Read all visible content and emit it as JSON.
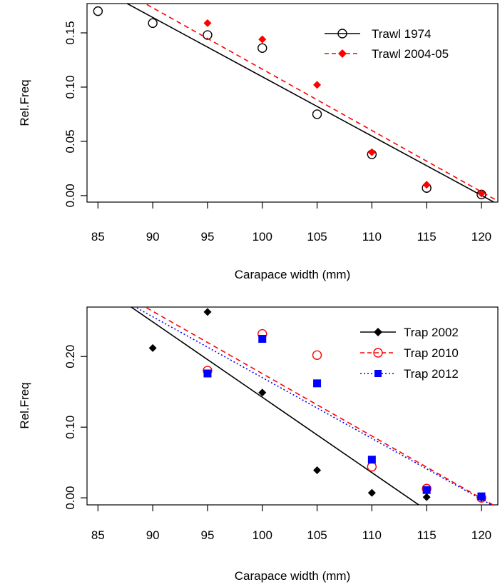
{
  "chart_data": [
    {
      "type": "scatter",
      "xlabel": "Carapace width (mm)",
      "ylabel": "Rel.Freq",
      "xlim": [
        84,
        121.5
      ],
      "ylim": [
        -0.006,
        0.177
      ],
      "xticks": [
        85,
        90,
        95,
        100,
        105,
        110,
        115,
        120
      ],
      "yticks": [
        0.0,
        0.05,
        0.1,
        0.15
      ],
      "ytick_labels": [
        "0.00",
        "0.05",
        "0.10",
        "0.15"
      ],
      "legend_position": "top-right",
      "series": [
        {
          "name": "Trawl 1974",
          "marker": "open-circle",
          "line": "solid",
          "color": "#000000",
          "x": [
            85,
            90,
            95,
            100,
            105,
            110,
            115,
            120
          ],
          "y": [
            0.17,
            0.159,
            0.148,
            0.136,
            0.075,
            0.038,
            0.007,
            0.001
          ],
          "fit": {
            "x": [
              84,
              121.5
            ],
            "y": [
              0.197,
              -0.008
            ]
          }
        },
        {
          "name": "Trawl 2004-05",
          "marker": "filled-diamond",
          "line": "dashed",
          "color": "#ff0000",
          "x": [
            95,
            100,
            105,
            110,
            115,
            120
          ],
          "y": [
            0.159,
            0.144,
            0.102,
            0.04,
            0.01,
            0.002
          ],
          "fit": {
            "x": [
              84,
              121.5
            ],
            "y": [
              0.207,
              -0.005
            ]
          }
        }
      ]
    },
    {
      "type": "scatter",
      "xlabel": "Carapace width (mm)",
      "ylabel": "Rel.Freq",
      "xlim": [
        84,
        121.5
      ],
      "ylim": [
        -0.01,
        0.27
      ],
      "xticks": [
        85,
        90,
        95,
        100,
        105,
        110,
        115,
        120
      ],
      "yticks": [
        0.0,
        0.1,
        0.2
      ],
      "ytick_labels": [
        "0.00",
        "0.10",
        "0.20"
      ],
      "legend_position": "top-right",
      "series": [
        {
          "name": "Trap 2002",
          "marker": "filled-diamond",
          "line": "solid",
          "color": "#000000",
          "x": [
            90,
            95,
            100,
            105,
            110,
            115,
            120
          ],
          "y": [
            0.212,
            0.263,
            0.149,
            0.039,
            0.007,
            0.001,
            0.0
          ],
          "fit": {
            "x": [
              84,
              121.5
            ],
            "y": [
              0.313,
              -0.087
            ]
          }
        },
        {
          "name": "Trap 2010",
          "marker": "open-circle",
          "line": "dashed",
          "color": "#ff0000",
          "x": [
            95,
            100,
            105,
            110,
            115,
            120
          ],
          "y": [
            0.18,
            0.232,
            0.202,
            0.044,
            0.013,
            0.0
          ],
          "fit": {
            "x": [
              84,
              121.5
            ],
            "y": [
              0.317,
              -0.014
            ]
          }
        },
        {
          "name": "Trap 2012",
          "marker": "filled-square",
          "line": "dotted",
          "color": "#0000ff",
          "x": [
            95,
            100,
            105,
            110,
            115,
            120
          ],
          "y": [
            0.176,
            0.225,
            0.162,
            0.054,
            0.011,
            0.002
          ],
          "fit": {
            "x": [
              84,
              121.5
            ],
            "y": [
              0.308,
              -0.015
            ]
          }
        }
      ]
    }
  ]
}
